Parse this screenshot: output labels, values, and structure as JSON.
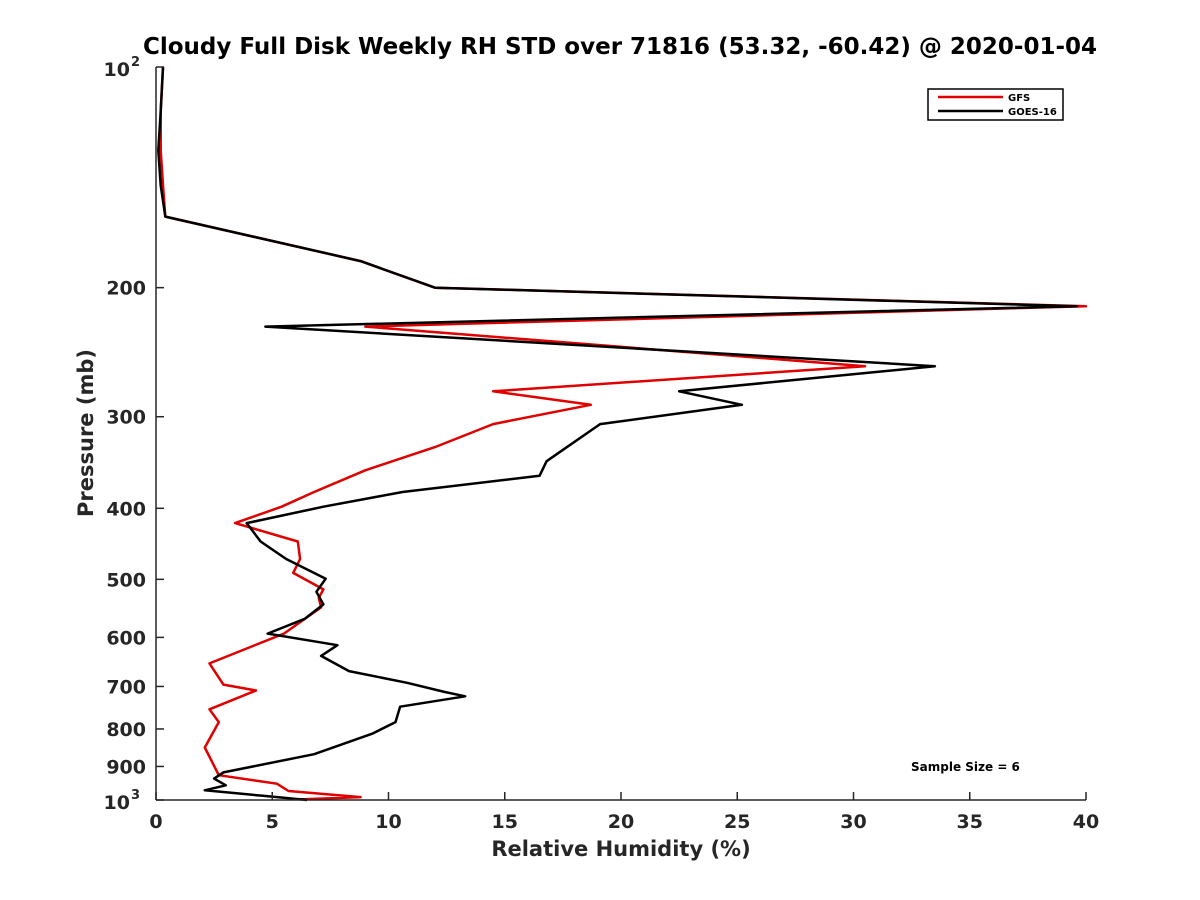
{
  "chart_data": {
    "type": "line",
    "title": "Cloudy Full Disk Weekly RH STD over 71816 (53.32, -60.42) @ 2020-01-04",
    "xlabel": "Relative Humidity (%)",
    "ylabel": "Pressure (mb)",
    "xlim": [
      0,
      40
    ],
    "ylim": [
      100,
      1000
    ],
    "y_scale": "log",
    "y_reversed": true,
    "x_ticks": [
      0,
      5,
      10,
      15,
      20,
      25,
      30,
      35,
      40
    ],
    "x_tick_labels": [
      "0",
      "5",
      "10",
      "15",
      "20",
      "25",
      "30",
      "35",
      "40"
    ],
    "y_ticks": [
      {
        "value": 100,
        "base": "10",
        "exp": "2"
      },
      {
        "value": 200,
        "label": "200"
      },
      {
        "value": 300,
        "label": "300"
      },
      {
        "value": 400,
        "label": "400"
      },
      {
        "value": 500,
        "label": "500"
      },
      {
        "value": 600,
        "label": "600"
      },
      {
        "value": 700,
        "label": "700"
      },
      {
        "value": 800,
        "label": "800"
      },
      {
        "value": 900,
        "label": "900"
      },
      {
        "value": 1000,
        "base": "10",
        "exp": "3"
      }
    ],
    "grid": false,
    "legend_position": "top-right",
    "series": [
      {
        "name": "GFS",
        "color": "#e00000",
        "points": [
          [
            0.3,
            100
          ],
          [
            0.2,
            115
          ],
          [
            0.2,
            130
          ],
          [
            0.3,
            145
          ],
          [
            0.4,
            160
          ],
          [
            8.8,
            184
          ],
          [
            12.0,
            200
          ],
          [
            40.0,
            212
          ],
          [
            9.0,
            226
          ],
          [
            30.5,
            256
          ],
          [
            14.5,
            277
          ],
          [
            18.7,
            289
          ],
          [
            14.5,
            307
          ],
          [
            12.0,
            330
          ],
          [
            9.0,
            355
          ],
          [
            6.8,
            380
          ],
          [
            5.4,
            398
          ],
          [
            3.4,
            419
          ],
          [
            6.1,
            444
          ],
          [
            6.2,
            469
          ],
          [
            5.9,
            490
          ],
          [
            7.2,
            516
          ],
          [
            7.0,
            530
          ],
          [
            7.1,
            546
          ],
          [
            5.5,
            593
          ],
          [
            2.3,
            651
          ],
          [
            2.9,
            696
          ],
          [
            4.3,
            709
          ],
          [
            2.3,
            752
          ],
          [
            2.7,
            783
          ],
          [
            2.1,
            848
          ],
          [
            2.7,
            925
          ],
          [
            5.2,
            950
          ],
          [
            5.7,
            972
          ],
          [
            8.8,
            991
          ],
          [
            6.2,
            998
          ]
        ]
      },
      {
        "name": "GOES-16",
        "color": "#000000",
        "points": [
          [
            0.3,
            100
          ],
          [
            0.2,
            115
          ],
          [
            0.1,
            130
          ],
          [
            0.2,
            145
          ],
          [
            0.4,
            160
          ],
          [
            8.8,
            184
          ],
          [
            12.0,
            200
          ],
          [
            39.6,
            212
          ],
          [
            4.7,
            226
          ],
          [
            33.5,
            256
          ],
          [
            22.5,
            277
          ],
          [
            25.2,
            289
          ],
          [
            19.1,
            307
          ],
          [
            16.8,
            345
          ],
          [
            16.5,
            361
          ],
          [
            10.6,
            380
          ],
          [
            7.2,
            398
          ],
          [
            3.9,
            419
          ],
          [
            4.5,
            444
          ],
          [
            5.6,
            469
          ],
          [
            7.3,
            499
          ],
          [
            6.9,
            520
          ],
          [
            7.2,
            541
          ],
          [
            6.4,
            566
          ],
          [
            4.8,
            593
          ],
          [
            7.8,
            615
          ],
          [
            7.1,
            636
          ],
          [
            8.3,
            667
          ],
          [
            10.8,
            692
          ],
          [
            12.4,
            712
          ],
          [
            13.3,
            722
          ],
          [
            10.5,
            746
          ],
          [
            10.3,
            783
          ],
          [
            9.3,
            812
          ],
          [
            6.8,
            866
          ],
          [
            2.9,
            917
          ],
          [
            2.5,
            935
          ],
          [
            3.0,
            955
          ],
          [
            2.1,
            970
          ],
          [
            4.6,
            987
          ],
          [
            6.5,
            1000
          ]
        ]
      }
    ],
    "annotation": "Sample Size = 6"
  }
}
